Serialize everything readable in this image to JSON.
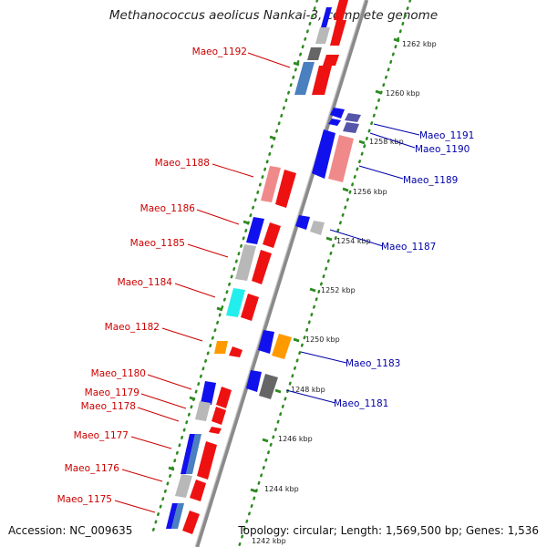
{
  "title": "Methanococcus aeolicus Nankai-3, complete genome",
  "accession": "Accession: NC_009635",
  "summary": "Topology: circular; Length: 1,569,500 bp; Genes: 1,536",
  "colors": {
    "backbone": "#8a8a8a",
    "tick_dots": "#2e8b22",
    "label_left": "#cc0000",
    "label_right": "#0000aa",
    "gene_red": "#ee1111",
    "gene_pink": "#f08a8a",
    "gene_blue": "#1111ee",
    "gene_steel": "#4a7fc0",
    "gene_gray": "#b8b8b8",
    "gene_darkgray": "#666666",
    "gene_cyan": "#22eeee",
    "gene_orange": "#ff9900",
    "gene_slate": "#5555aa"
  },
  "kbp_ticks": [
    {
      "kbp": 1262,
      "label": "1262 kbp"
    },
    {
      "kbp": 1260,
      "label": "1260 kbp"
    },
    {
      "kbp": 1258,
      "label": "1258 kbp"
    },
    {
      "kbp": 1256,
      "label": "1256 kbp"
    },
    {
      "kbp": 1254,
      "label": "1254 kbp"
    },
    {
      "kbp": 1252,
      "label": "1252 kbp"
    },
    {
      "kbp": 1250,
      "label": "1250 kbp"
    },
    {
      "kbp": 1248,
      "label": "1248 kbp"
    },
    {
      "kbp": 1246,
      "label": "1246 kbp"
    },
    {
      "kbp": 1244,
      "label": "1244 kbp"
    },
    {
      "kbp": 1242,
      "label": "1242 kbp"
    }
  ],
  "gene_labels_left": [
    {
      "label": "Maeo_1192"
    },
    {
      "label": "Maeo_1188"
    },
    {
      "label": "Maeo_1186"
    },
    {
      "label": "Maeo_1185"
    },
    {
      "label": "Maeo_1184"
    },
    {
      "label": "Maeo_1182"
    },
    {
      "label": "Maeo_1180"
    },
    {
      "label": "Maeo_1179"
    },
    {
      "label": "Maeo_1178"
    },
    {
      "label": "Maeo_1177"
    },
    {
      "label": "Maeo_1176"
    },
    {
      "label": "Maeo_1175"
    }
  ],
  "gene_labels_right": [
    {
      "label": "Maeo_1191"
    },
    {
      "label": "Maeo_1190"
    },
    {
      "label": "Maeo_1189"
    },
    {
      "label": "Maeo_1187"
    },
    {
      "label": "Maeo_1183"
    },
    {
      "label": "Maeo_1181"
    }
  ]
}
